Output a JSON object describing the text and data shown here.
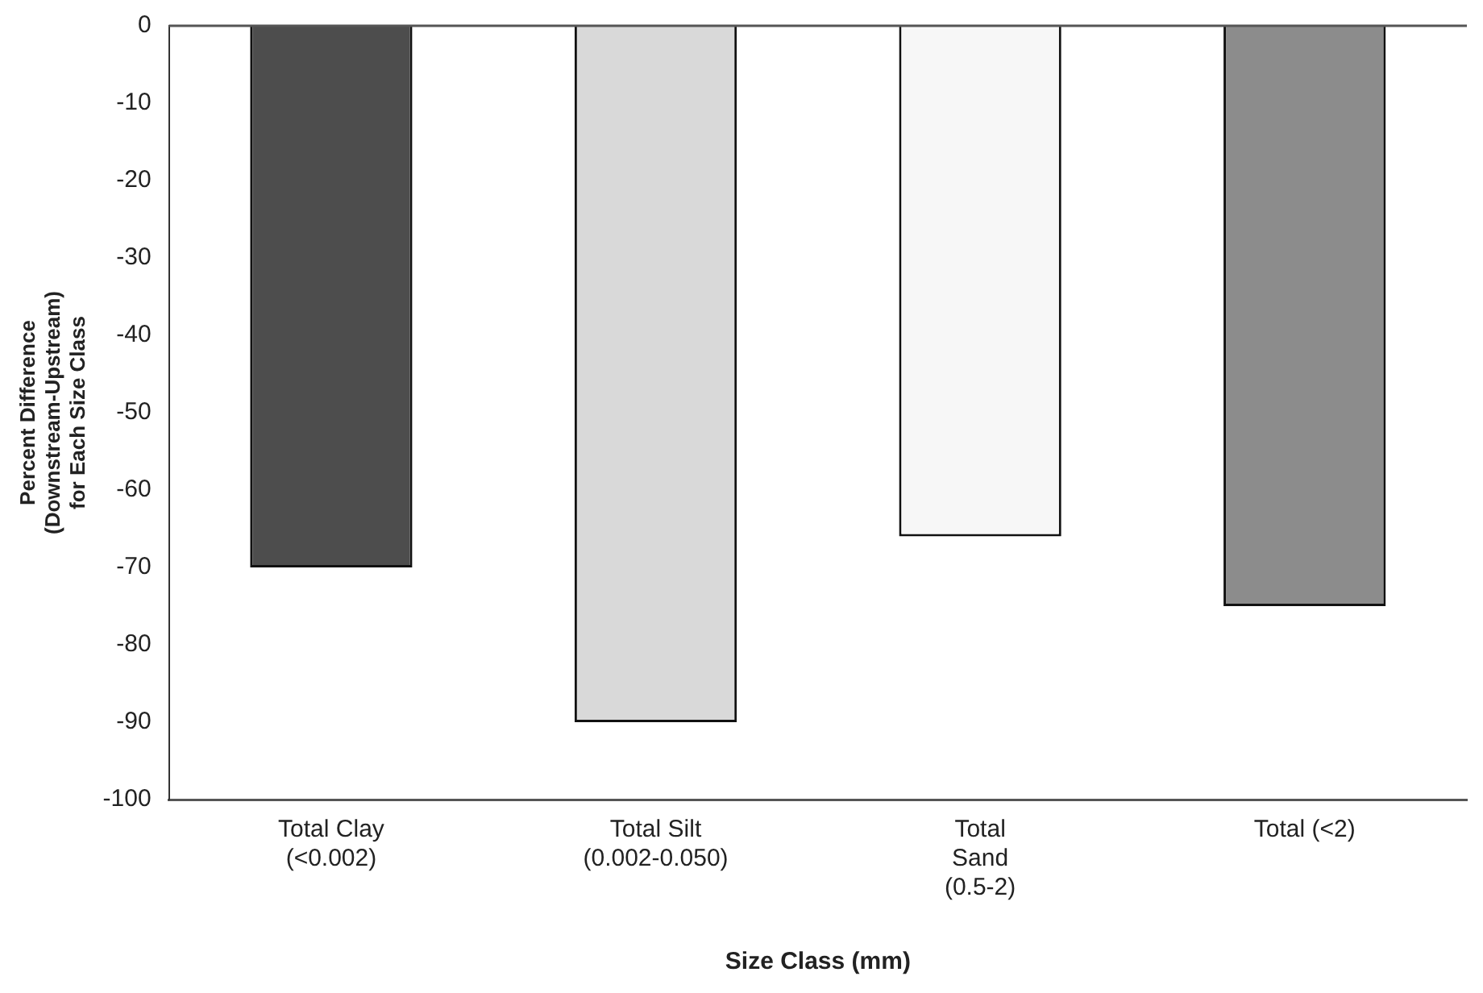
{
  "chart_data": {
    "type": "bar",
    "xlabel": "Size Class (mm)",
    "ylabel": "Percent Difference (Downstream-Upstream) for Each Size Class",
    "categories": [
      "Total Clay (<0.002)",
      "Total Silt (0.002-0.050)",
      "Total Sand (0.5-2)",
      "Total (<2)"
    ],
    "values": [
      -70,
      -90,
      -66,
      -75
    ],
    "colors": [
      "#4d4d4d",
      "#d9d9d9",
      "#f7f7f7",
      "#8c8c8c"
    ],
    "ylim": [
      -100,
      0
    ],
    "yticks": [
      -100,
      -90,
      -80,
      -70,
      -60,
      -50,
      -40,
      -30,
      -20,
      -10,
      0
    ],
    "grid": false,
    "legend": false
  }
}
